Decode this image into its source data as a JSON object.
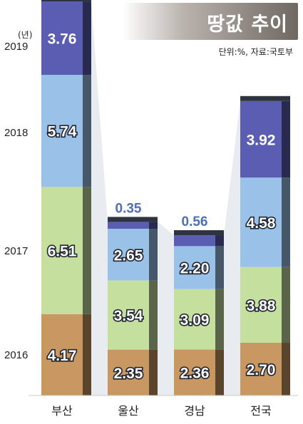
{
  "header": {
    "title": "땅값 추이",
    "source": "단위:%, 자료:국토부",
    "year_unit": "(년)"
  },
  "colors": {
    "2016": "#c99862",
    "2017": "#c5df9f",
    "2018": "#9ac2e9",
    "2019": "#5a5db2",
    "side": "#2e3340",
    "connector": "#d6dbe3",
    "highlight_label": "#4d6fb6"
  },
  "chart_data": {
    "type": "bar",
    "stacked": true,
    "title": "땅값 추이",
    "unit": "%",
    "source": "국토부",
    "categories": [
      "부산",
      "울산",
      "경남",
      "전국"
    ],
    "series": [
      {
        "name": "2016",
        "values": [
          4.17,
          2.35,
          2.36,
          2.7
        ]
      },
      {
        "name": "2017",
        "values": [
          6.51,
          3.54,
          3.09,
          3.88
        ]
      },
      {
        "name": "2018",
        "values": [
          5.74,
          2.65,
          2.2,
          4.58
        ]
      },
      {
        "name": "2019",
        "values": [
          3.76,
          0.35,
          0.56,
          3.92
        ]
      }
    ],
    "value_labels": [
      [
        "4.17",
        "2.35",
        "2.36",
        "2.70"
      ],
      [
        "6.51",
        "3.54",
        "3.09",
        "3.88"
      ],
      [
        "5.74",
        "2.65",
        "2.20",
        "4.58"
      ],
      [
        "3.76",
        "0.35",
        "0.56",
        "3.92"
      ]
    ],
    "grid": false,
    "legend": "left"
  }
}
